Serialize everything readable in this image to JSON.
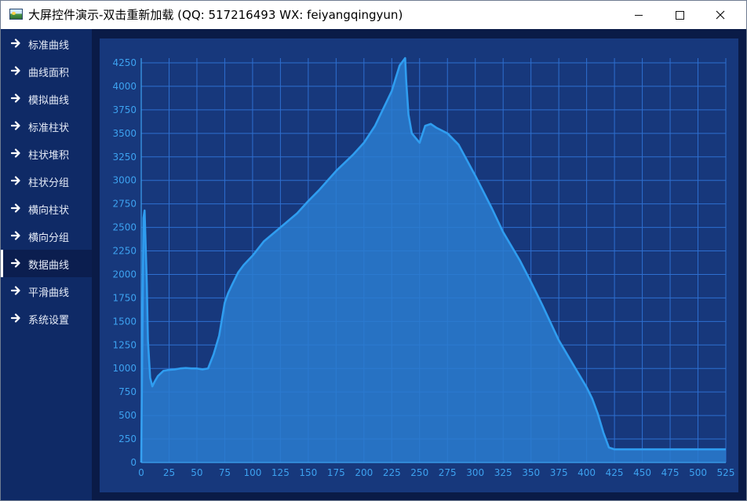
{
  "window": {
    "title": "大屏控件演示-双击重新加载 (QQ: 517216493  WX: feiyangqingyun)",
    "controls": [
      "minimize",
      "maximize",
      "close"
    ]
  },
  "sidebar": {
    "active_index": 8,
    "items": [
      {
        "label": "标准曲线",
        "icon": "arrow-right-icon"
      },
      {
        "label": "曲线面积",
        "icon": "arrow-right-icon"
      },
      {
        "label": "模拟曲线",
        "icon": "arrow-right-icon"
      },
      {
        "label": "标准柱状",
        "icon": "arrow-right-icon"
      },
      {
        "label": "柱状堆积",
        "icon": "arrow-right-icon"
      },
      {
        "label": "柱状分组",
        "icon": "arrow-right-icon"
      },
      {
        "label": "横向柱状",
        "icon": "arrow-right-icon"
      },
      {
        "label": "横向分组",
        "icon": "arrow-right-icon"
      },
      {
        "label": "数据曲线",
        "icon": "arrow-right-icon"
      },
      {
        "label": "平滑曲线",
        "icon": "arrow-right-icon"
      },
      {
        "label": "系统设置",
        "icon": "arrow-right-icon"
      }
    ]
  },
  "colors": {
    "titlebar_bg": "#ffffff",
    "sidebar_bg": "#0f2a66",
    "main_bg": "#0a1b47",
    "panel_bg": "#17387c",
    "grid": "#2e6fd0",
    "line": "#2f9df0",
    "fill": "#2a7dd0",
    "tick_text": "#3da2f0"
  },
  "chart_data": {
    "type": "area",
    "title": "",
    "xlabel": "",
    "ylabel": "",
    "xlim": [
      0,
      525
    ],
    "ylim": [
      0,
      4300
    ],
    "x_ticks": [
      0,
      25,
      50,
      75,
      100,
      125,
      150,
      175,
      200,
      225,
      250,
      275,
      300,
      325,
      350,
      375,
      400,
      425,
      450,
      475,
      500,
      525
    ],
    "y_ticks": [
      0,
      250,
      500,
      750,
      1000,
      1250,
      1500,
      1750,
      2000,
      2250,
      2500,
      2750,
      3000,
      3250,
      3500,
      3750,
      4000,
      4250
    ],
    "grid": true,
    "legend": "none",
    "series": [
      {
        "x": [
          0,
          2,
          3,
          5,
          6,
          8,
          10,
          12,
          15,
          20,
          25,
          30,
          35,
          40,
          45,
          50,
          55,
          60,
          65,
          70,
          75,
          78,
          82,
          87,
          92,
          100,
          110,
          125,
          140,
          150,
          160,
          175,
          190,
          200,
          210,
          225,
          232,
          237,
          238,
          240,
          243,
          250,
          255,
          260,
          265,
          275,
          285,
          300,
          315,
          325,
          340,
          350,
          360,
          375,
          390,
          400,
          405,
          410,
          415,
          420,
          425,
          450,
          475,
          500,
          525
        ],
        "y": [
          0,
          2600,
          2680,
          1900,
          1300,
          900,
          810,
          860,
          920,
          975,
          985,
          990,
          1000,
          1005,
          1000,
          1000,
          990,
          1000,
          1150,
          1350,
          1700,
          1800,
          1900,
          2020,
          2100,
          2200,
          2350,
          2500,
          2650,
          2780,
          2900,
          3100,
          3270,
          3400,
          3580,
          3950,
          4220,
          4300,
          4050,
          3700,
          3500,
          3400,
          3580,
          3600,
          3560,
          3500,
          3380,
          3050,
          2700,
          2450,
          2150,
          1920,
          1680,
          1300,
          1000,
          800,
          680,
          520,
          320,
          160,
          140,
          140,
          140,
          140,
          140
        ]
      }
    ]
  }
}
